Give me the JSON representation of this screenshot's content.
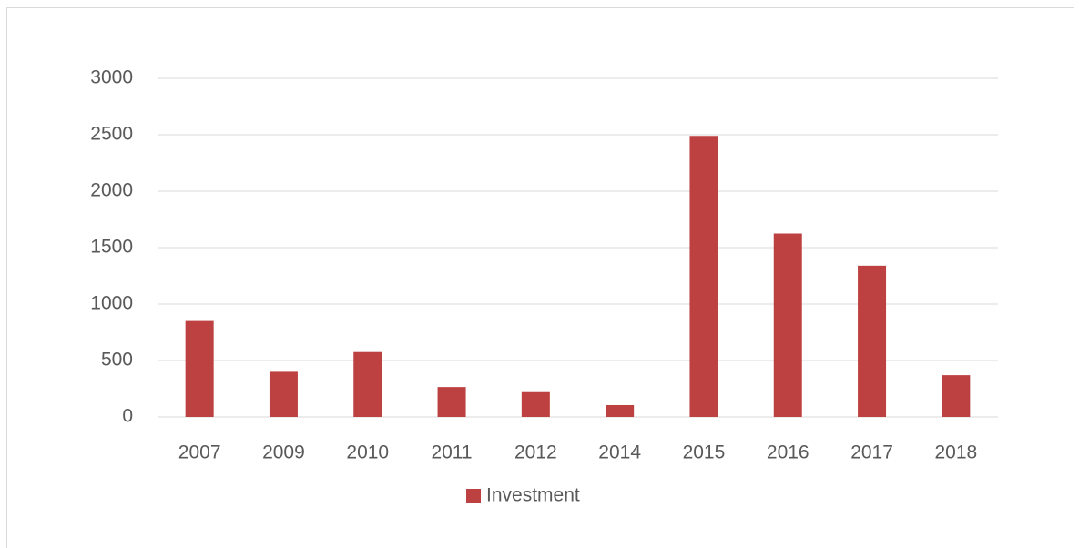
{
  "chart_data": {
    "type": "bar",
    "categories": [
      "2007",
      "2009",
      "2010",
      "2011",
      "2012",
      "2014",
      "2015",
      "2016",
      "2017",
      "2018"
    ],
    "series": [
      {
        "name": "Investment",
        "color": "#be4141",
        "values": [
          850,
          400,
          575,
          265,
          220,
          105,
          2490,
          1625,
          1340,
          370
        ]
      }
    ],
    "ylim": [
      0,
      3000
    ],
    "yticks": [
      0,
      500,
      1000,
      1500,
      2000,
      2500,
      3000
    ],
    "grid": true,
    "legend": "bottom"
  }
}
